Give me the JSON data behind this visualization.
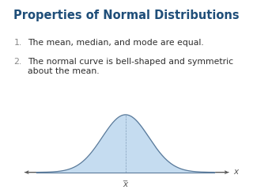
{
  "title": "Properties of Normal Distributions",
  "title_color": "#1F4E79",
  "title_fontsize": 10.5,
  "bg_color": "#FFFFFF",
  "items": [
    "The mean, median, and mode are equal.",
    "The normal curve is bell-shaped and symmetric\nabout the mean."
  ],
  "item_color": "#2E2E2E",
  "item_fontsize": 7.8,
  "number_color": "#888888",
  "number_fontsize": 7.8,
  "curve_fill_color": "#C5DCF0",
  "curve_line_color": "#5A7A9A",
  "axis_color": "#555555",
  "x_label": "x",
  "xbar_label": "x̅"
}
